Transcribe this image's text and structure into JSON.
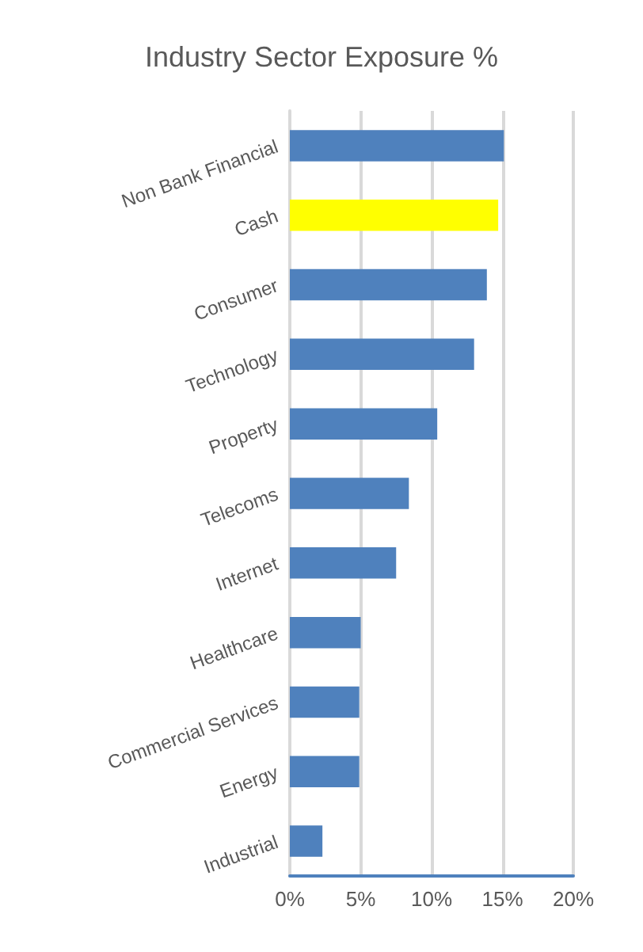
{
  "chart_data": {
    "type": "bar",
    "orientation": "horizontal",
    "title": "Industry Sector Exposure %",
    "categories": [
      "Non Bank Financial",
      "Cash",
      "Consumer",
      "Technology",
      "Property",
      "Telecoms",
      "Internet",
      "Healthcare",
      "Commercial Services",
      "Energy",
      "Industrial"
    ],
    "values": [
      15.1,
      14.7,
      13.9,
      13.0,
      10.4,
      8.4,
      7.5,
      5.0,
      4.9,
      4.9,
      2.3
    ],
    "colors": [
      "#4f81bd",
      "#ffff00",
      "#4f81bd",
      "#4f81bd",
      "#4f81bd",
      "#4f81bd",
      "#4f81bd",
      "#4f81bd",
      "#4f81bd",
      "#4f81bd",
      "#4f81bd"
    ],
    "xlim": [
      0,
      20
    ],
    "xticks": [
      {
        "value": 0,
        "label": "0%"
      },
      {
        "value": 5,
        "label": "5%"
      },
      {
        "value": 10,
        "label": "10%"
      },
      {
        "value": 15,
        "label": "15%"
      },
      {
        "value": 20,
        "label": "20%"
      }
    ],
    "grid": "x"
  }
}
